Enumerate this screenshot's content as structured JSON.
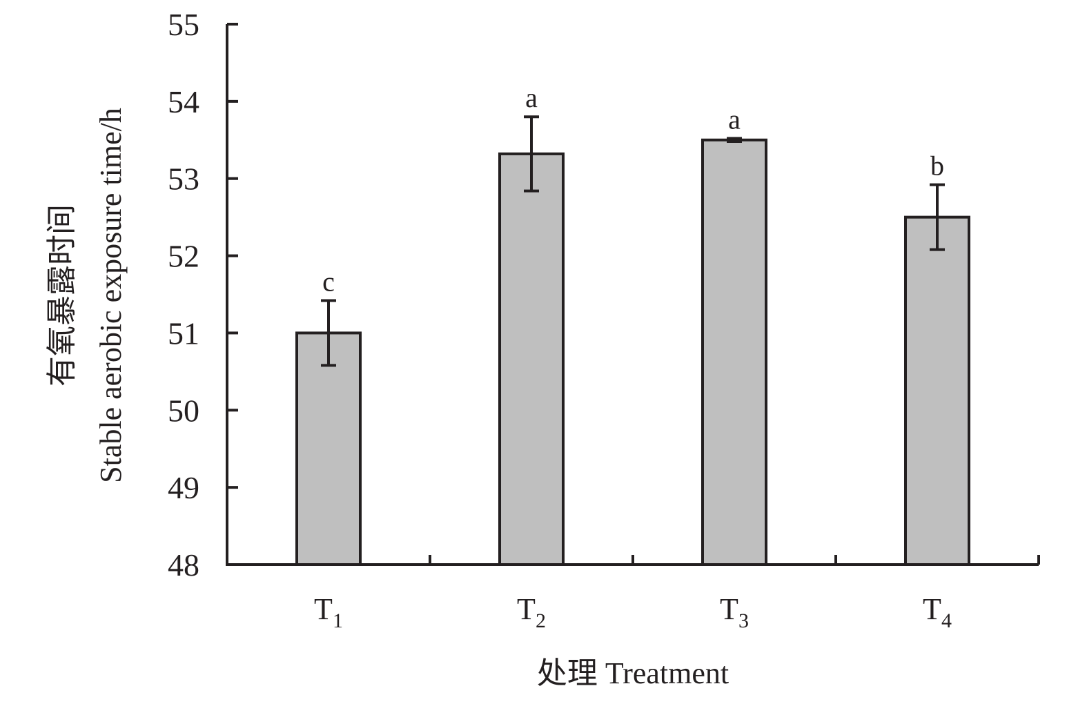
{
  "chart_data": {
    "type": "bar",
    "categories": [
      {
        "main": "T",
        "sub": "1"
      },
      {
        "main": "T",
        "sub": "2"
      },
      {
        "main": "T",
        "sub": "3"
      },
      {
        "main": "T",
        "sub": "4"
      }
    ],
    "values": [
      51.0,
      53.32,
      53.5,
      52.5
    ],
    "errors": [
      0.42,
      0.48,
      0.02,
      0.42
    ],
    "significance": [
      "c",
      "a",
      "a",
      "b"
    ],
    "ylim": [
      48,
      55
    ],
    "yticks": [
      "48",
      "49",
      "50",
      "51",
      "52",
      "53",
      "54",
      "55"
    ],
    "ylabel_zh": "有氧暴露时间",
    "ylabel_en": "Stable aerobic exposure time/h",
    "xlabel": "处理 Treatment",
    "grid": false,
    "colors": {
      "bar_fill": "#bfbfbf",
      "stroke": "#231f20"
    }
  }
}
